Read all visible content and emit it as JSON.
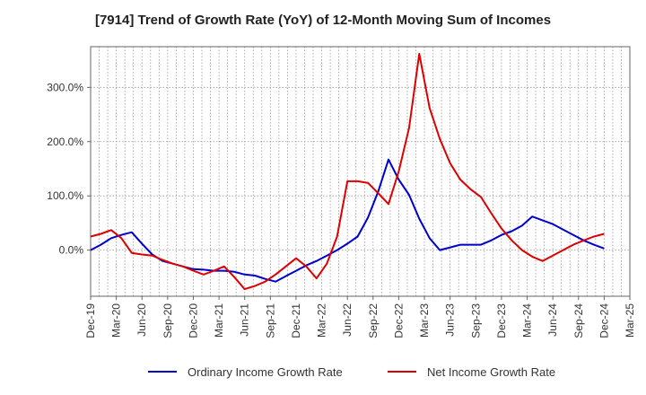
{
  "chart_data": {
    "type": "line",
    "title": "[7914]  Trend of Growth Rate (YoY) of 12-Month Moving Sum of Incomes",
    "xlabel": "",
    "ylabel": "",
    "x_tick_labels": [
      "Dec-19",
      "Mar-20",
      "Jun-20",
      "Sep-20",
      "Dec-20",
      "Mar-21",
      "Jun-21",
      "Sep-21",
      "Dec-21",
      "Mar-22",
      "Jun-22",
      "Sep-22",
      "Dec-22",
      "Mar-23",
      "Jun-23",
      "Sep-23",
      "Dec-23",
      "Mar-24",
      "Jun-24",
      "Sep-24",
      "Dec-24",
      "Mar-25"
    ],
    "y_ticks": [
      0,
      100,
      200,
      300
    ],
    "y_tick_labels": [
      "0.0%",
      "100.0%",
      "200.0%",
      "300.0%"
    ],
    "ylim": [
      -85,
      375
    ],
    "grid": true,
    "legend_position": "bottom",
    "series": [
      {
        "name": "Ordinary Income Growth Rate",
        "color": "#0000cc",
        "values": [
          0,
          10,
          22,
          28,
          33,
          12,
          -8,
          -20,
          -25,
          -30,
          -35,
          -36,
          -38,
          -38,
          -40,
          -45,
          -47,
          -53,
          -58,
          -48,
          -38,
          -28,
          -20,
          -10,
          0,
          12,
          25,
          60,
          108,
          167,
          130,
          102,
          58,
          22,
          0,
          5,
          10,
          10,
          10,
          18,
          28,
          35,
          45,
          62,
          55,
          48,
          38,
          28,
          18,
          10,
          3
        ]
      },
      {
        "name": "Net Income Growth Rate",
        "color": "#dd0000",
        "values": [
          25,
          30,
          37,
          22,
          -5,
          -8,
          -10,
          -18,
          -25,
          -30,
          -38,
          -45,
          -38,
          -30,
          -50,
          -72,
          -66,
          -58,
          -45,
          -30,
          -15,
          -30,
          -52,
          -25,
          25,
          127,
          127,
          124,
          105,
          85,
          145,
          225,
          362,
          262,
          205,
          160,
          130,
          112,
          98,
          68,
          40,
          18,
          0,
          -12,
          -20,
          -10,
          0,
          10,
          18,
          25,
          30
        ]
      }
    ]
  }
}
